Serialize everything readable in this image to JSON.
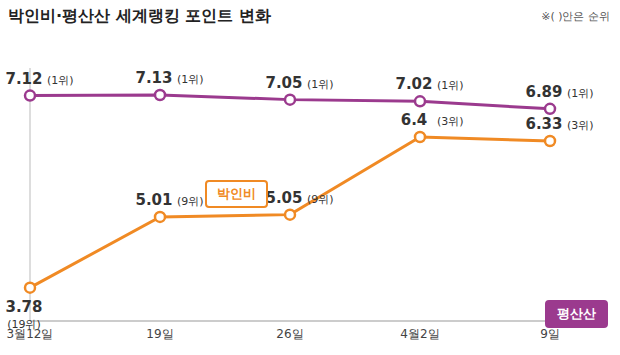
{
  "chart_data": {
    "type": "line",
    "title": "박인비·평산산 세계랭킹 포인트 변화",
    "subtitle": "※( )안은 순위",
    "categories": [
      "3월12일",
      "19일",
      "26일",
      "4월2일",
      "9일"
    ],
    "series": [
      {
        "name": "평산산",
        "color": "#9b3a8e",
        "values": [
          7.12,
          7.13,
          7.05,
          7.02,
          6.89
        ],
        "rank_labels": [
          "(1위)",
          "(1위)",
          "(1위)",
          "(1위)",
          "(1위)"
        ]
      },
      {
        "name": "박인비",
        "color": "#f08a24",
        "values": [
          3.78,
          5.01,
          5.05,
          6.4,
          6.33
        ],
        "rank_labels": [
          "(19위)",
          "(9위)",
          "(9위)",
          "(3위)",
          "(3위)"
        ]
      }
    ],
    "ylim": [
      3.2,
      7.6
    ],
    "tick_labels": "x",
    "data_labels": true,
    "marker": "circle",
    "grid": false
  }
}
